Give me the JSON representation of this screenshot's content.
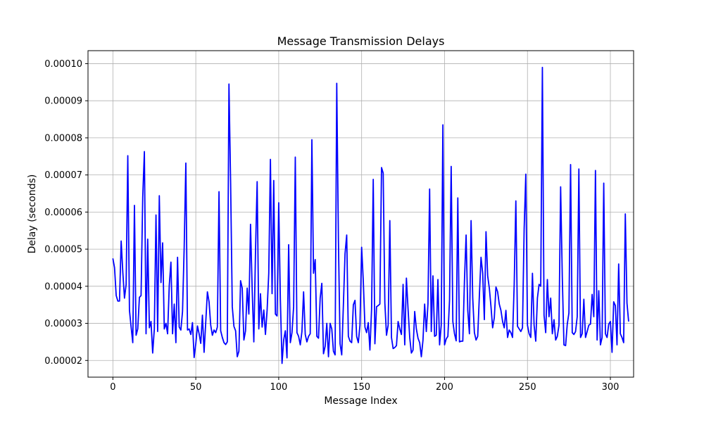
{
  "chart_data": {
    "type": "line",
    "title": "Message Transmission Delays",
    "xlabel": "Message Index",
    "ylabel": "Delay (seconds)",
    "xlim": [
      -15,
      314
    ],
    "ylim": [
      1.55e-05,
      0.0001035
    ],
    "xticks": [
      0,
      50,
      100,
      150,
      200,
      250,
      300
    ],
    "xtick_labels": [
      "0",
      "50",
      "100",
      "150",
      "200",
      "250",
      "300"
    ],
    "yticks": [
      2e-05,
      3e-05,
      4e-05,
      5e-05,
      6e-05,
      7e-05,
      8e-05,
      9e-05,
      0.0001
    ],
    "ytick_labels": [
      "0.00002",
      "0.00003",
      "0.00004",
      "0.00005",
      "0.00006",
      "0.00007",
      "0.00008",
      "0.00009",
      "0.00010"
    ],
    "grid": true,
    "line_color": "#0000ff",
    "series": [
      {
        "name": "",
        "x_start": 0,
        "x_step": 1,
        "values": [
          4.75e-05,
          4.5e-05,
          3.75e-05,
          3.6e-05,
          3.6e-05,
          5.22e-05,
          4.37e-05,
          3.68e-05,
          4.05e-05,
          7.52e-05,
          3.35e-05,
          2.9e-05,
          2.48e-05,
          6.18e-05,
          2.68e-05,
          2.85e-05,
          3.7e-05,
          3.75e-05,
          6.4e-05,
          7.63e-05,
          2.72e-05,
          5.27e-05,
          2.88e-05,
          3.05e-05,
          2.2e-05,
          2.85e-05,
          5.92e-05,
          2.78e-05,
          6.44e-05,
          4.1e-05,
          5.17e-05,
          2.85e-05,
          3e-05,
          2.72e-05,
          4.02e-05,
          4.65e-05,
          2.72e-05,
          3.52e-05,
          2.48e-05,
          4.78e-05,
          2.9e-05,
          2.82e-05,
          3.32e-05,
          5.05e-05,
          7.32e-05,
          2.82e-05,
          2.85e-05,
          2.7e-05,
          3.02e-05,
          2.08e-05,
          2.45e-05,
          2.93e-05,
          2.72e-05,
          2.46e-05,
          3.22e-05,
          2.22e-05,
          3.03e-05,
          3.85e-05,
          3.58e-05,
          2.95e-05,
          2.68e-05,
          2.82e-05,
          2.75e-05,
          2.9e-05,
          6.55e-05,
          2.8e-05,
          2.62e-05,
          2.48e-05,
          2.43e-05,
          2.5e-05,
          9.45e-05,
          6.8e-05,
          3.45e-05,
          2.92e-05,
          2.8e-05,
          2.1e-05,
          2.25e-05,
          4.15e-05,
          3.95e-05,
          2.55e-05,
          2.8e-05,
          3.95e-05,
          3.25e-05,
          5.67e-05,
          3.92e-05,
          2.5e-05,
          4.92e-05,
          6.82e-05,
          2.85e-05,
          3.8e-05,
          2.9e-05,
          3.36e-05,
          2.7e-05,
          3.35e-05,
          4.35e-05,
          7.42e-05,
          3.8e-05,
          6.85e-05,
          3.25e-05,
          3.2e-05,
          6.25e-05,
          3.65e-05,
          1.92e-05,
          2.55e-05,
          2.8e-05,
          2.07e-05,
          5.12e-05,
          2.48e-05,
          2.75e-05,
          3.45e-05,
          7.48e-05,
          2.75e-05,
          2.65e-05,
          2.42e-05,
          2.78e-05,
          3.85e-05,
          2.7e-05,
          2.5e-05,
          2.65e-05,
          2.72e-05,
          7.95e-05,
          4.35e-05,
          4.72e-05,
          2.65e-05,
          2.6e-05,
          3.68e-05,
          4.08e-05,
          2.18e-05,
          2.38e-05,
          3e-05,
          2.1e-05,
          3e-05,
          2.85e-05,
          2.25e-05,
          2.15e-05,
          9.47e-05,
          5.25e-05,
          2.45e-05,
          2.15e-05,
          3.5e-05,
          4.88e-05,
          5.38e-05,
          2.65e-05,
          2.52e-05,
          2.48e-05,
          3.5e-05,
          3.62e-05,
          2.65e-05,
          2.48e-05,
          2.95e-05,
          5.05e-05,
          4.15e-05,
          2.9e-05,
          2.75e-05,
          3.02e-05,
          2.28e-05,
          3.38e-05,
          6.88e-05,
          2.45e-05,
          3.45e-05,
          3.48e-05,
          3.52e-05,
          7.2e-05,
          7.05e-05,
          3.55e-05,
          2.68e-05,
          2.95e-05,
          5.77e-05,
          2.62e-05,
          2.32e-05,
          2.35e-05,
          2.4e-05,
          3.05e-05,
          2.85e-05,
          2.7e-05,
          4.05e-05,
          2.42e-05,
          4.22e-05,
          3.38e-05,
          2.62e-05,
          2.2e-05,
          2.28e-05,
          3.32e-05,
          2.85e-05,
          2.6e-05,
          2.48e-05,
          2.1e-05,
          2.55e-05,
          3.52e-05,
          2.78e-05,
          3.52e-05,
          6.62e-05,
          2.78e-05,
          4.28e-05,
          2.65e-05,
          2.68e-05,
          4.18e-05,
          2.42e-05,
          2.95e-05,
          8.35e-05,
          2.42e-05,
          2.58e-05,
          2.65e-05,
          3.62e-05,
          7.23e-05,
          3.05e-05,
          2.72e-05,
          2.53e-05,
          6.38e-05,
          2.5e-05,
          2.52e-05,
          2.52e-05,
          4.15e-05,
          5.38e-05,
          3.35e-05,
          2.72e-05,
          5.77e-05,
          3.68e-05,
          2.75e-05,
          2.55e-05,
          2.65e-05,
          3.75e-05,
          4.78e-05,
          4.35e-05,
          3.1e-05,
          5.47e-05,
          4.28e-05,
          3.95e-05,
          3.45e-05,
          2.88e-05,
          3.15e-05,
          3.98e-05,
          3.85e-05,
          3.52e-05,
          3.35e-05,
          3.05e-05,
          2.88e-05,
          3.35e-05,
          2.62e-05,
          2.82e-05,
          2.75e-05,
          2.62e-05,
          4.05e-05,
          6.3e-05,
          2.92e-05,
          2.85e-05,
          2.78e-05,
          2.88e-05,
          5.55e-05,
          7.02e-05,
          2.95e-05,
          2.72e-05,
          2.62e-05,
          4.35e-05,
          2.95e-05,
          2.52e-05,
          3.68e-05,
          4.05e-05,
          4e-05,
          9.9e-05,
          3.22e-05,
          2.75e-05,
          4.18e-05,
          3.18e-05,
          3.68e-05,
          2.72e-05,
          3.1e-05,
          2.55e-05,
          2.65e-05,
          2.95e-05,
          6.68e-05,
          4.25e-05,
          2.42e-05,
          2.4e-05,
          2.98e-05,
          3.28e-05,
          7.28e-05,
          2.75e-05,
          2.7e-05,
          2.78e-05,
          3.18e-05,
          7.16e-05,
          2.62e-05,
          2.72e-05,
          3.65e-05,
          2.62e-05,
          2.78e-05,
          2.95e-05,
          2.98e-05,
          3.78e-05,
          3.18e-05,
          7.12e-05,
          2.55e-05,
          3.88e-05,
          2.42e-05,
          2.62e-05,
          6.78e-05,
          2.72e-05,
          2.62e-05,
          2.98e-05,
          3.05e-05,
          2.22e-05,
          3.58e-05,
          3.48e-05,
          2.42e-05,
          4.6e-05,
          2.72e-05,
          2.62e-05,
          2.48e-05,
          5.95e-05,
          3.55e-05,
          3.05e-05
        ]
      }
    ]
  }
}
